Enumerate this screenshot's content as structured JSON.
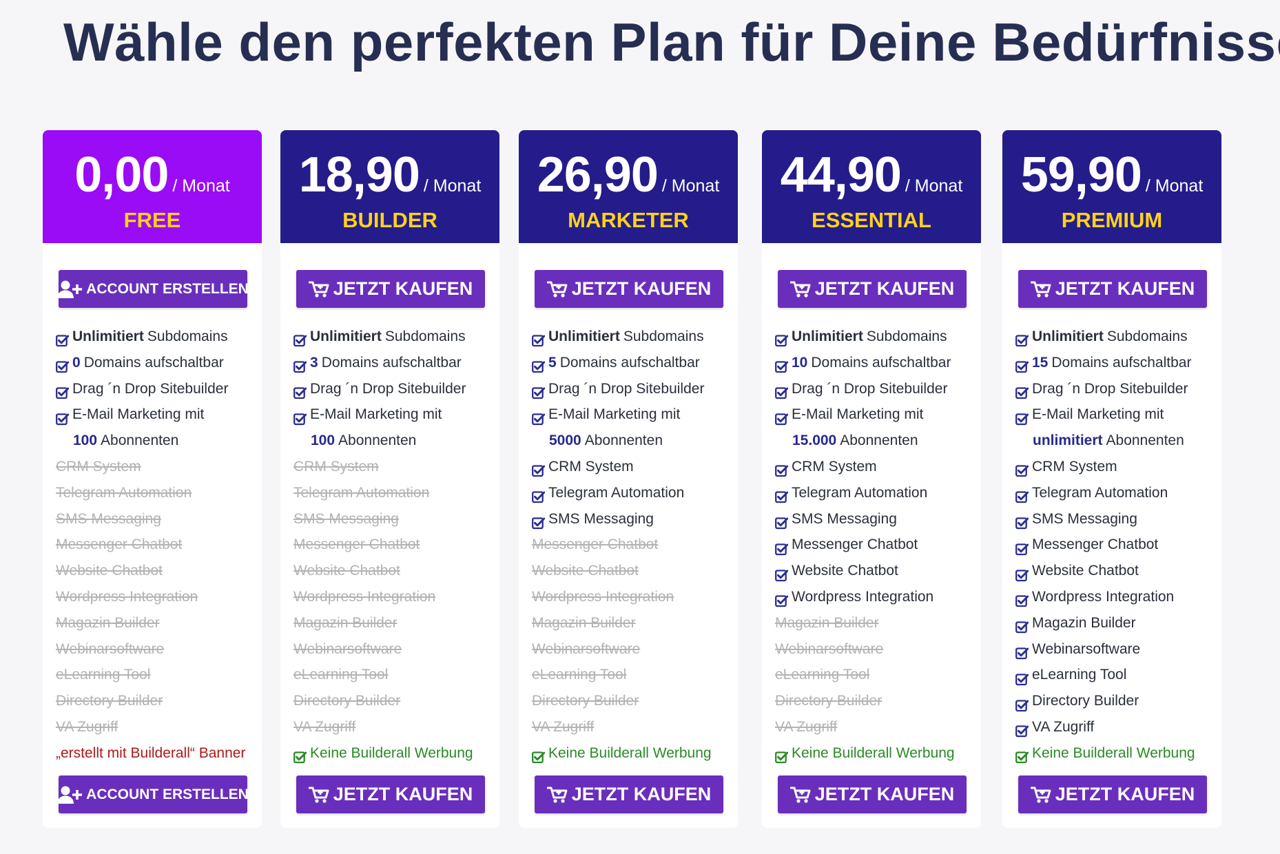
{
  "page": {
    "title": "Wähle den perfekten Plan für Deine Bedürfnisse"
  },
  "colors": {
    "background": "#f6f6f8",
    "title": "#262e52",
    "free_header": "#9a0bf6",
    "paid_header": "#241c8a",
    "plan_name": "#ffd21c",
    "button": "#6a2ebc",
    "check": "#2b2d8f",
    "green": "#2a8a26",
    "red": "#b01818",
    "disabled": "#b3b3b3"
  },
  "plans": [
    {
      "price": "0,00",
      "period": "/ Monat",
      "name": "FREE",
      "header": "free",
      "button": {
        "label": "ACCOUNT ERSTELLEN",
        "icon": "user-plus-icon",
        "type": "account"
      },
      "features": [
        {
          "type": "check",
          "bold": "Unlimitiert",
          "text": "Subdomains"
        },
        {
          "type": "check",
          "bold": "0",
          "text": "Domains aufschaltbar"
        },
        {
          "type": "check",
          "text": "Drag ´n Drop Sitebuilder"
        },
        {
          "type": "check",
          "text": "E-Mail Marketing mit"
        },
        {
          "type": "indent",
          "bold": "100",
          "text": "Abonnenten"
        },
        {
          "type": "off",
          "text": "CRM System"
        },
        {
          "type": "off",
          "text": "Telegram Automation"
        },
        {
          "type": "off",
          "text": "SMS Messaging"
        },
        {
          "type": "off",
          "text": "Messenger Chatbot"
        },
        {
          "type": "off",
          "text": "Website Chatbot"
        },
        {
          "type": "off",
          "text": "Wordpress Integration"
        },
        {
          "type": "off",
          "text": "Magazin Builder"
        },
        {
          "type": "off",
          "text": "Webinarsoftware"
        },
        {
          "type": "off",
          "text": "eLearning Tool"
        },
        {
          "type": "off",
          "text": "Directory Builder"
        },
        {
          "type": "off",
          "text": "VA Zugriff"
        },
        {
          "type": "red",
          "text": "„erstellt mit Builderall“ Banner"
        }
      ]
    },
    {
      "price": "18,90",
      "period": "/ Monat",
      "name": "BUILDER",
      "header": "paid",
      "button": {
        "label": "JETZT KAUFEN",
        "icon": "cart-icon",
        "type": "buy"
      },
      "features": [
        {
          "type": "check",
          "bold": "Unlimitiert",
          "text": "Subdomains"
        },
        {
          "type": "check",
          "bold": "3",
          "text": "Domains aufschaltbar"
        },
        {
          "type": "check",
          "text": "Drag ´n Drop Sitebuilder"
        },
        {
          "type": "check",
          "text": "E-Mail Marketing mit"
        },
        {
          "type": "indent",
          "bold": "100",
          "text": "Abonnenten"
        },
        {
          "type": "off",
          "text": "CRM System"
        },
        {
          "type": "off",
          "text": "Telegram Automation"
        },
        {
          "type": "off",
          "text": "SMS Messaging"
        },
        {
          "type": "off",
          "text": "Messenger Chatbot"
        },
        {
          "type": "off",
          "text": "Website Chatbot"
        },
        {
          "type": "off",
          "text": "Wordpress Integration"
        },
        {
          "type": "off",
          "text": "Magazin Builder"
        },
        {
          "type": "off",
          "text": "Webinarsoftware"
        },
        {
          "type": "off",
          "text": "eLearning Tool"
        },
        {
          "type": "off",
          "text": "Directory Builder"
        },
        {
          "type": "off",
          "text": "VA Zugriff"
        },
        {
          "type": "green",
          "text": "Keine Builderall Werbung"
        }
      ]
    },
    {
      "price": "26,90",
      "period": "/ Monat",
      "name": "MARKETER",
      "header": "paid",
      "button": {
        "label": "JETZT KAUFEN",
        "icon": "cart-icon",
        "type": "buy"
      },
      "features": [
        {
          "type": "check",
          "bold": "Unlimitiert",
          "text": "Subdomains"
        },
        {
          "type": "check",
          "bold": "5",
          "text": "Domains aufschaltbar"
        },
        {
          "type": "check",
          "text": "Drag ´n Drop Sitebuilder"
        },
        {
          "type": "check",
          "text": "E-Mail Marketing mit"
        },
        {
          "type": "indent",
          "bold": "5000",
          "text": "Abonnenten"
        },
        {
          "type": "check",
          "text": "CRM System"
        },
        {
          "type": "check",
          "text": "Telegram Automation"
        },
        {
          "type": "check",
          "text": "SMS Messaging"
        },
        {
          "type": "off",
          "text": "Messenger Chatbot"
        },
        {
          "type": "off",
          "text": "Website Chatbot"
        },
        {
          "type": "off",
          "text": "Wordpress Integration"
        },
        {
          "type": "off",
          "text": "Magazin Builder"
        },
        {
          "type": "off",
          "text": "Webinarsoftware"
        },
        {
          "type": "off",
          "text": "eLearning Tool"
        },
        {
          "type": "off",
          "text": "Directory Builder"
        },
        {
          "type": "off",
          "text": "VA Zugriff"
        },
        {
          "type": "green",
          "text": "Keine Builderall Werbung"
        }
      ]
    },
    {
      "price": "44,90",
      "period": "/ Monat",
      "name": "ESSENTIAL",
      "header": "paid",
      "button": {
        "label": "JETZT KAUFEN",
        "icon": "cart-icon",
        "type": "buy"
      },
      "features": [
        {
          "type": "check",
          "bold": "Unlimitiert",
          "text": "Subdomains"
        },
        {
          "type": "check",
          "bold": "10",
          "text": "Domains aufschaltbar"
        },
        {
          "type": "check",
          "text": "Drag ´n Drop Sitebuilder"
        },
        {
          "type": "check",
          "text": "E-Mail Marketing  mit"
        },
        {
          "type": "indent",
          "bold": "15.000",
          "text": "Abonnenten"
        },
        {
          "type": "check",
          "text": "CRM System"
        },
        {
          "type": "check",
          "text": "Telegram Automation"
        },
        {
          "type": "check",
          "text": "SMS Messaging"
        },
        {
          "type": "check",
          "text": "Messenger Chatbot"
        },
        {
          "type": "check",
          "text": "Website Chatbot"
        },
        {
          "type": "check",
          "text": "Wordpress Integration"
        },
        {
          "type": "off",
          "text": "Magazin Builder"
        },
        {
          "type": "off",
          "text": "Webinarsoftware"
        },
        {
          "type": "off",
          "text": "eLearning Tool"
        },
        {
          "type": "off",
          "text": "Directory Builder"
        },
        {
          "type": "off",
          "text": "VA Zugriff"
        },
        {
          "type": "green",
          "text": "Keine Builderall Werbung"
        }
      ]
    },
    {
      "price": "59,90",
      "period": "/ Monat",
      "name": "PREMIUM",
      "header": "paid",
      "button": {
        "label": "JETZT KAUFEN",
        "icon": "cart-icon",
        "type": "buy"
      },
      "features": [
        {
          "type": "check",
          "bold": "Unlimitiert",
          "text": "Subdomains"
        },
        {
          "type": "check",
          "bold": "15",
          "text": "Domains aufschaltbar"
        },
        {
          "type": "check",
          "text": "Drag ´n Drop Sitebuilder"
        },
        {
          "type": "check",
          "text": "E-Mail Marketing mit"
        },
        {
          "type": "indent",
          "bold": "unlimitiert",
          "text": "Abonnenten"
        },
        {
          "type": "check",
          "text": "CRM System"
        },
        {
          "type": "check",
          "text": "Telegram Automation"
        },
        {
          "type": "check",
          "text": "SMS Messaging"
        },
        {
          "type": "check",
          "text": "Messenger Chatbot"
        },
        {
          "type": "check",
          "text": "Website Chatbot"
        },
        {
          "type": "check",
          "text": "Wordpress Integration"
        },
        {
          "type": "check",
          "text": "Magazin Builder"
        },
        {
          "type": "check",
          "text": "Webinarsoftware"
        },
        {
          "type": "check",
          "text": "eLearning Tool"
        },
        {
          "type": "check",
          "text": "Directory Builder"
        },
        {
          "type": "check",
          "text": "VA Zugriff"
        },
        {
          "type": "green",
          "text": "Keine Builderall Werbung"
        }
      ]
    }
  ]
}
